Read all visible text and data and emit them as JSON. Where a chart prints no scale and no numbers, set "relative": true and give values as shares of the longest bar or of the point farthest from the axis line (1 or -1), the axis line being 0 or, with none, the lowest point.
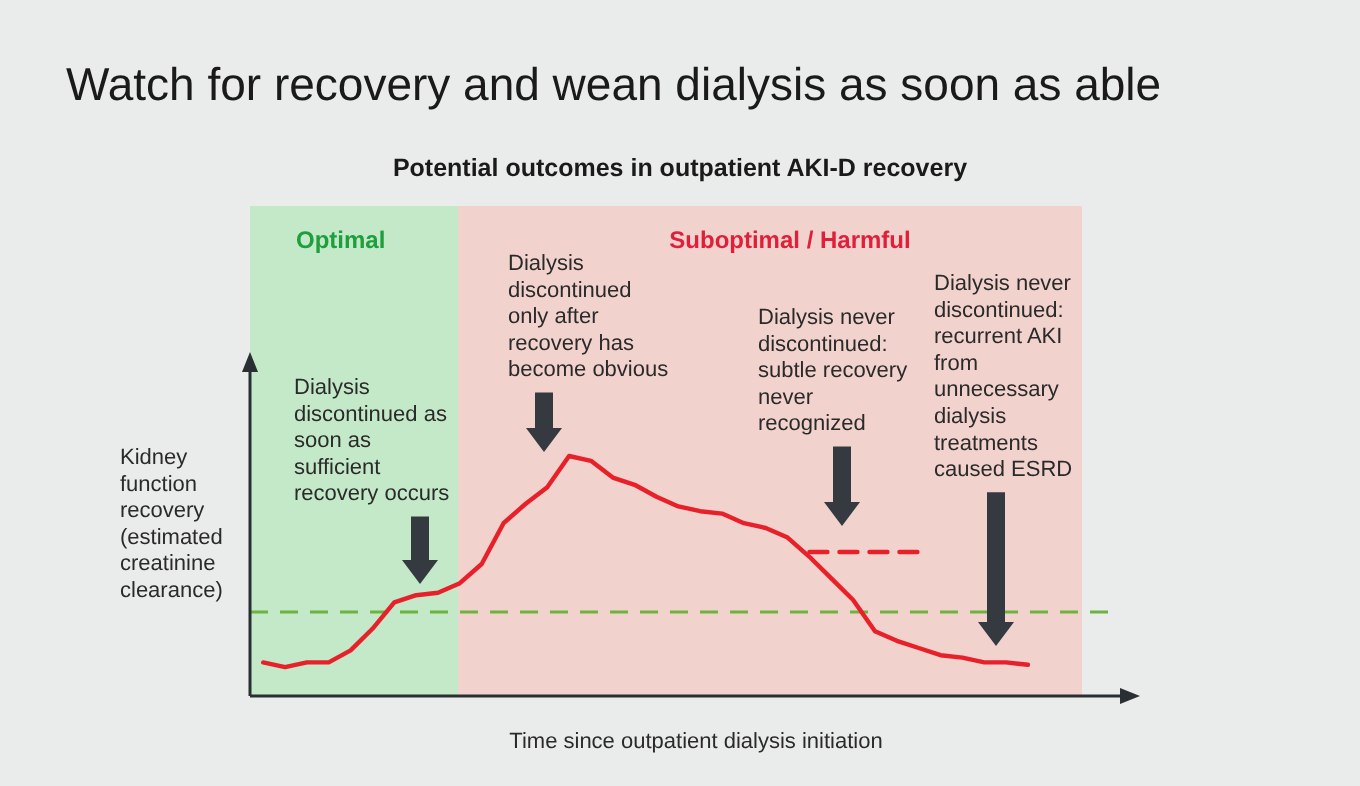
{
  "chart_data": {
    "type": "line",
    "title": "Watch for recovery and wean dialysis as soon as able",
    "subtitle": "Potential outcomes in outpatient AKI-D recovery",
    "xlabel": "Time since outpatient dialysis initiation",
    "ylabel": "Kidney\nfunction\nrecovery\n(estimated\ncreatinine\nclearance)",
    "relative": true,
    "categories": [
      null,
      null,
      null,
      null,
      null,
      null,
      null,
      null,
      null,
      null,
      null,
      null,
      null,
      null,
      null,
      null,
      null,
      null,
      null,
      null,
      null,
      null,
      null,
      null,
      null,
      null,
      null,
      null,
      null,
      null,
      null,
      null,
      null,
      null,
      null,
      null
    ],
    "series": [
      {
        "color": "#e8202a",
        "values": [
          0.14,
          0.12,
          0.14,
          0.14,
          0.19,
          0.28,
          0.39,
          0.42,
          0.43,
          0.47,
          0.55,
          0.72,
          0.8,
          0.87,
          1,
          0.98,
          0.91,
          0.88,
          0.83,
          0.79,
          0.77,
          0.76,
          0.72,
          0.7,
          0.66,
          0.58,
          0.49,
          0.4,
          0.27,
          0.23,
          0.2,
          0.17,
          0.16,
          0.14,
          0.14,
          0.13
        ]
      },
      {
        "color": "#e8202a",
        "line_style": "dashed",
        "values": [
          null,
          null,
          null,
          null,
          null,
          null,
          null,
          null,
          null,
          null,
          null,
          null,
          null,
          null,
          null,
          null,
          null,
          null,
          null,
          null,
          null,
          null,
          null,
          null,
          null,
          0.6,
          0.6,
          0.6,
          0.6,
          0.6,
          0.6,
          null,
          null,
          null,
          null,
          null
        ]
      }
    ],
    "ref_lines": [
      {
        "axis": "y",
        "value": 0.35,
        "color": "#6cb33f",
        "line_style": "dashed"
      }
    ],
    "annotations": [
      "Optimal",
      "Suboptimal / Harmful",
      "Dialysis\ndiscontinued as\nsoon as\nsufficient\nrecovery occurs",
      "Dialysis\ndiscontinued\nonly after\nrecovery has\nbecome obvious",
      "Dialysis never\ndiscontinued:\nsubtle recovery\nnever\nrecognized",
      "Dialysis never\ndiscontinued:\nrecurrent AKI\nfrom\nunnecessary\ndialysis\ntreatments\ncaused ESRD"
    ]
  }
}
